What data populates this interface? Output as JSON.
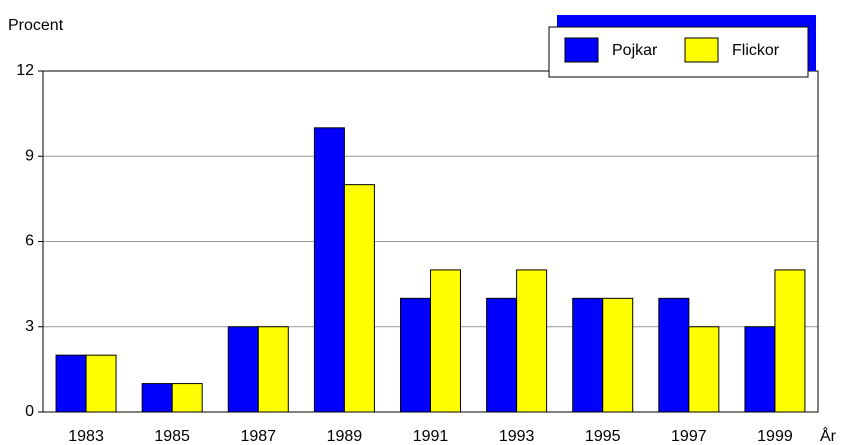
{
  "chart_data": {
    "type": "bar",
    "y_label": "Procent",
    "x_label": "År",
    "categories": [
      "1983",
      "1985",
      "1987",
      "1989",
      "1991",
      "1993",
      "1995",
      "1997",
      "1999"
    ],
    "series": [
      {
        "name": "Pojkar",
        "color": "#0000ff",
        "values": [
          2,
          1,
          3,
          10,
          4,
          4,
          4,
          4,
          3
        ]
      },
      {
        "name": "Flickor",
        "color": "#ffff00",
        "values": [
          2,
          1,
          3,
          8,
          5,
          5,
          4,
          3,
          5
        ]
      }
    ],
    "ylim": [
      0,
      12
    ],
    "yticks": [
      0,
      3,
      6,
      9,
      12
    ],
    "grid": true,
    "legend": "top-right"
  }
}
